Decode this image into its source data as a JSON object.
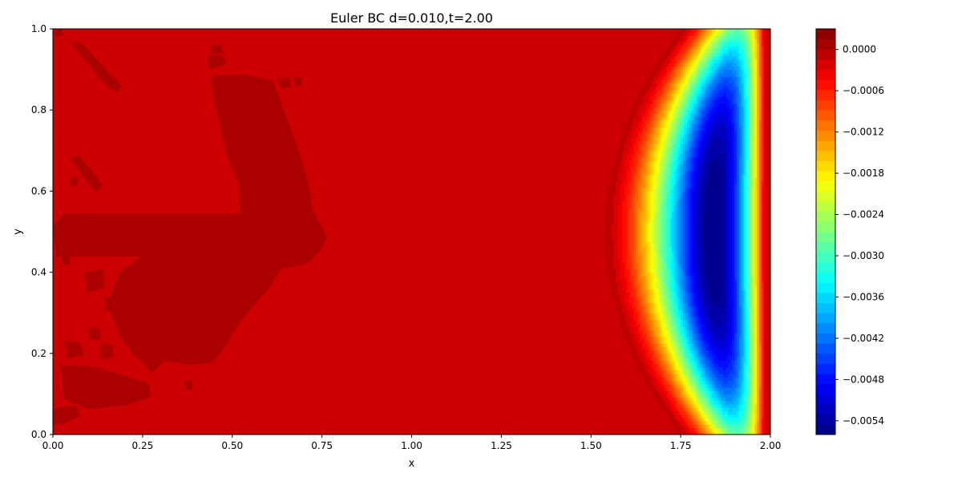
{
  "chart_data": {
    "type": "heatmap",
    "title": "Euler BC d=0.010,t=2.00",
    "xlabel": "x",
    "ylabel": "y",
    "xlim": [
      0.0,
      2.0
    ],
    "ylim": [
      0.0,
      1.0
    ],
    "x_ticks": [
      0.0,
      0.25,
      0.5,
      0.75,
      1.0,
      1.25,
      1.5,
      1.75,
      2.0
    ],
    "x_tick_labels": [
      "0.00",
      "0.25",
      "0.50",
      "0.75",
      "1.00",
      "1.25",
      "1.50",
      "1.75",
      "2.00"
    ],
    "y_ticks": [
      0.0,
      0.2,
      0.4,
      0.6,
      0.8,
      1.0
    ],
    "y_tick_labels": [
      "0.0",
      "0.2",
      "0.4",
      "0.6",
      "0.8",
      "1.0"
    ],
    "colormap": "jet",
    "value_range": [
      -0.0056,
      0.0003
    ],
    "color_levels": 40,
    "colorbar": {
      "placement": "right",
      "ticks": [
        0.0,
        -0.0006,
        -0.0012,
        -0.0018,
        -0.0024,
        -0.003,
        -0.0036,
        -0.0042,
        -0.0048,
        -0.0054
      ],
      "tick_labels": [
        "0.0000",
        "−0.0006",
        "−0.0012",
        "−0.0018",
        "−0.0024",
        "−0.0030",
        "−0.0036",
        "−0.0042",
        "−0.0048",
        "−0.0054"
      ]
    },
    "field_features": {
      "background_value": 0.0001,
      "positive_region_value": 0.0002,
      "minimum_value": -0.0056,
      "minimum_location": [
        1.93,
        0.5
      ],
      "front_leading_edge_x_center": 1.5,
      "front_leading_edge_x_walls": 1.72,
      "trailing_wall_x": 1.99
    }
  }
}
